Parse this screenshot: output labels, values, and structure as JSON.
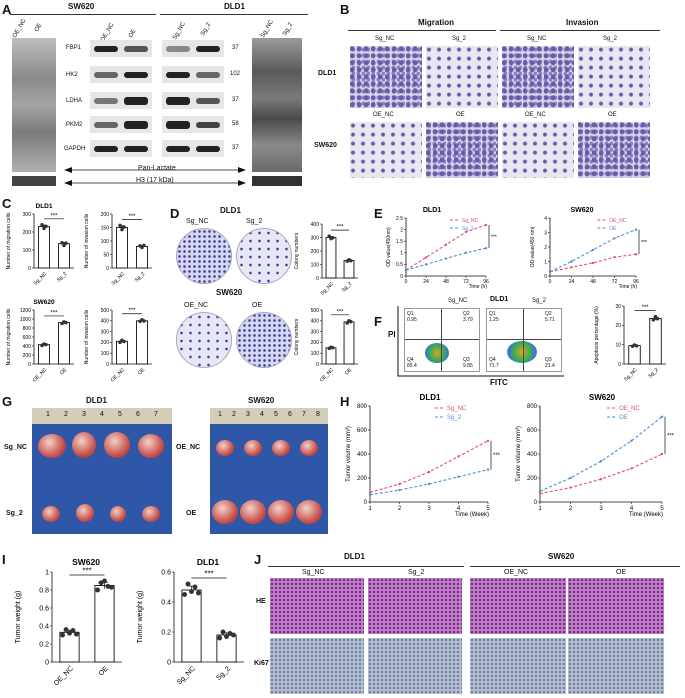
{
  "panels": {
    "A": {
      "label": "A",
      "left_title": "SW620",
      "right_title": "DLD1",
      "left_lanes": [
        "OE_NC",
        "OE"
      ],
      "right_lanes": [
        "Sg_NC",
        "Sg_2"
      ],
      "proteins": [
        "FBP1",
        "HK2",
        "LDHA",
        "PKM2",
        "GAPDH"
      ],
      "kda": [
        "37",
        "102",
        "37",
        "58",
        "37"
      ],
      "pan_lactate": "Pan-Lactate",
      "h3": "H3 (17 kDa)"
    },
    "B": {
      "label": "B",
      "col_migration": "Migration",
      "col_invasion": "Invasion",
      "rows": [
        "DLD1",
        "SW620"
      ],
      "row1_cols": [
        "Sg_NC",
        "Sg_2",
        "Sg_NC",
        "Sg_2"
      ],
      "row2_cols": [
        "OE_NC",
        "OE",
        "OE_NC",
        "OE"
      ]
    },
    "C": {
      "label": "C",
      "title_top": "DLD1",
      "title_bottom": "SW620"
    },
    "D": {
      "label": "D",
      "title_top": "DLD1",
      "title_bottom": "SW620",
      "top_cols": [
        "Sg_NC",
        "Sg_2"
      ],
      "bottom_cols": [
        "OE_NC",
        "OE"
      ]
    },
    "E": {
      "label": "E"
    },
    "F": {
      "label": "F",
      "title": "DLD1",
      "cols": [
        "Sg_NC",
        "Sg_2"
      ],
      "ylabel": "PI",
      "xlabel": "FITC",
      "q_left": [
        "Q1",
        "0.95",
        "Q2",
        "3.79",
        "Q4",
        "85.4",
        "Q3",
        "9.85"
      ],
      "q_right": [
        "Q1",
        "1.25",
        "Q2",
        "5.71",
        "Q4",
        "71.7",
        "Q3",
        "21.4"
      ]
    },
    "G": {
      "label": "G",
      "left_title": "DLD1",
      "right_title": "SW620",
      "left_rows": [
        "Sg_NC",
        "Sg_2"
      ],
      "right_rows": [
        "OE_NC",
        "OE"
      ],
      "ruler_left": [
        "1",
        "2",
        "3",
        "4",
        "5",
        "6",
        "7"
      ],
      "ruler_right": [
        "1",
        "2",
        "3",
        "4",
        "5",
        "6",
        "7",
        "8"
      ]
    },
    "H": {
      "label": "H"
    },
    "I": {
      "label": "I"
    },
    "J": {
      "label": "J",
      "left_title": "DLD1",
      "right_title": "SW620",
      "cols": [
        "Sg_NC",
        "Sg_2",
        "OE_NC",
        "OE"
      ],
      "rows": [
        "HE",
        "Ki67"
      ]
    }
  },
  "chart_data": [
    {
      "id": "C1",
      "type": "bar",
      "title": "DLD1",
      "ylabel": "Number of migration cells",
      "categories": [
        "Sg_NC",
        "Sg_2"
      ],
      "values": [
        230,
        135
      ],
      "points": [
        [
          240,
          220,
          232
        ],
        [
          140,
          125,
          138
        ]
      ],
      "ylim": [
        0,
        300
      ],
      "yticks": [
        0,
        100,
        200,
        300
      ],
      "sig": "***"
    },
    {
      "id": "C2",
      "type": "bar",
      "title": "",
      "ylabel": "Number of invasion cells",
      "categories": [
        "Sg_NC",
        "Sg_2"
      ],
      "values": [
        150,
        80
      ],
      "points": [
        [
          158,
          142,
          152
        ],
        [
          82,
          76,
          84
        ]
      ],
      "ylim": [
        0,
        200
      ],
      "yticks": [
        0,
        50,
        100,
        150,
        200
      ],
      "sig": "***"
    },
    {
      "id": "C3",
      "type": "bar",
      "title": "SW620",
      "ylabel": "Number of migration cells",
      "categories": [
        "OE_NC",
        "OE"
      ],
      "values": [
        430,
        920
      ],
      "points": [
        [
          410,
          445,
          430
        ],
        [
          900,
          935,
          920
        ]
      ],
      "ylim": [
        0,
        1200
      ],
      "yticks": [
        0,
        200,
        400,
        600,
        800,
        1000,
        1200
      ],
      "sig": "***"
    },
    {
      "id": "C4",
      "type": "bar",
      "title": "",
      "ylabel": "Number of invasion cells",
      "categories": [
        "OE_NC",
        "OE"
      ],
      "values": [
        210,
        400
      ],
      "points": [
        [
          200,
          220,
          208
        ],
        [
          395,
          410,
          398
        ]
      ],
      "ylim": [
        0,
        500
      ],
      "yticks": [
        0,
        100,
        200,
        300,
        400,
        500
      ],
      "sig": "***"
    },
    {
      "id": "D1",
      "type": "bar",
      "title": "",
      "ylabel": "Colony numbers",
      "categories": [
        "Sg_NC",
        "Sg_2"
      ],
      "values": [
        300,
        130
      ],
      "points": [
        [
          310,
          292,
          298
        ],
        [
          125,
          135,
          128
        ]
      ],
      "ylim": [
        0,
        400
      ],
      "yticks": [
        0,
        100,
        200,
        300,
        400
      ],
      "sig": "***"
    },
    {
      "id": "D2",
      "type": "bar",
      "title": "",
      "ylabel": "Colony numbers",
      "categories": [
        "OE_NC",
        "OE"
      ],
      "values": [
        150,
        390
      ],
      "points": [
        [
          145,
          155,
          150
        ],
        [
          380,
          400,
          392
        ]
      ],
      "ylim": [
        0,
        500
      ],
      "yticks": [
        0,
        100,
        200,
        300,
        400,
        500
      ],
      "sig": "***"
    },
    {
      "id": "E1",
      "type": "line",
      "title": "DLD1",
      "xlabel": "Time (h)",
      "ylabel": "OD value(450nm)",
      "x": [
        0,
        24,
        48,
        72,
        96
      ],
      "xlim": [
        0,
        96
      ],
      "ylim": [
        0,
        2.5
      ],
      "yticks": [
        0.0,
        0.5,
        1.0,
        1.5,
        2.0,
        2.5
      ],
      "series": [
        {
          "name": "Sg_NC",
          "values": [
            0.25,
            0.8,
            1.35,
            1.9,
            2.2
          ],
          "color": "#e05070"
        },
        {
          "name": "Sg_2",
          "values": [
            0.25,
            0.5,
            0.75,
            1.0,
            1.2
          ],
          "color": "#4a8fd8"
        }
      ],
      "sig": "***"
    },
    {
      "id": "E2",
      "type": "line",
      "title": "SW620",
      "xlabel": "Time (h)",
      "ylabel": "OD value(450 nm)",
      "x": [
        0,
        24,
        48,
        72,
        96
      ],
      "xlim": [
        0,
        96
      ],
      "ylim": [
        0,
        4
      ],
      "yticks": [
        0,
        1,
        2,
        3,
        4
      ],
      "series": [
        {
          "name": "OE_NC",
          "values": [
            0.3,
            0.6,
            0.9,
            1.3,
            1.5
          ],
          "color": "#e05070"
        },
        {
          "name": "OE",
          "values": [
            0.3,
            1.0,
            1.8,
            2.6,
            3.2
          ],
          "color": "#4a8fd8"
        }
      ],
      "sig": "***"
    },
    {
      "id": "F1",
      "type": "bar",
      "title": "",
      "ylabel": "Apoptosis percentage (%)",
      "categories": [
        "Sg_NC",
        "Sg_2"
      ],
      "values": [
        9.5,
        23.5
      ],
      "points": [
        [
          9.2,
          9.8,
          9.4
        ],
        [
          22.8,
          24.5,
          23.4
        ]
      ],
      "ylim": [
        0,
        30
      ],
      "yticks": [
        0,
        10,
        20,
        30
      ],
      "sig": "***"
    },
    {
      "id": "H1",
      "type": "line",
      "title": "DLD1",
      "xlabel": "Time (Week)",
      "ylabel": "Tumor volume (mm³)",
      "x": [
        1,
        2,
        3,
        4,
        5
      ],
      "xlim": [
        1,
        5
      ],
      "ylim": [
        0,
        800
      ],
      "yticks": [
        0,
        200,
        400,
        600,
        800
      ],
      "series": [
        {
          "name": "Sg_NC",
          "values": [
            80,
            150,
            250,
            380,
            510
          ],
          "color": "#e05070"
        },
        {
          "name": "Sg_2",
          "values": [
            60,
            100,
            150,
            210,
            270
          ],
          "color": "#4a8fd8"
        }
      ],
      "sig": "***"
    },
    {
      "id": "H2",
      "type": "line",
      "title": "SW620",
      "xlabel": "Time (Week)",
      "ylabel": "Tumor volume (mm³)",
      "x": [
        1,
        2,
        3,
        4,
        5
      ],
      "xlim": [
        1,
        5
      ],
      "ylim": [
        0,
        800
      ],
      "yticks": [
        0,
        200,
        400,
        600,
        800
      ],
      "series": [
        {
          "name": "OE_NC",
          "values": [
            70,
            120,
            190,
            280,
            400
          ],
          "color": "#e05070"
        },
        {
          "name": "OE",
          "values": [
            90,
            200,
            340,
            510,
            710
          ],
          "color": "#4a8fd8"
        }
      ],
      "sig": "***"
    },
    {
      "id": "I1",
      "type": "bar",
      "title": "SW620",
      "ylabel": "Tumor weight (g)",
      "categories": [
        "OE_NC",
        "OE"
      ],
      "values": [
        0.33,
        0.85
      ],
      "points": [
        [
          0.3,
          0.36,
          0.32,
          0.35,
          0.31
        ],
        [
          0.8,
          0.88,
          0.9,
          0.84,
          0.83
        ]
      ],
      "ylim": [
        0,
        1.0
      ],
      "yticks": [
        0.0,
        0.2,
        0.4,
        0.6,
        0.8,
        1.0
      ],
      "sig": "***"
    },
    {
      "id": "I2",
      "type": "bar",
      "title": "DLD1",
      "ylabel": "Tumor weight (g)",
      "categories": [
        "Sg_NC",
        "Sg_2"
      ],
      "values": [
        0.48,
        0.18
      ],
      "points": [
        [
          0.45,
          0.52,
          0.47,
          0.5,
          0.46
        ],
        [
          0.16,
          0.2,
          0.17,
          0.19,
          0.18
        ]
      ],
      "ylim": [
        0,
        0.6
      ],
      "yticks": [
        0.0,
        0.2,
        0.4,
        0.6
      ],
      "sig": "***"
    }
  ]
}
